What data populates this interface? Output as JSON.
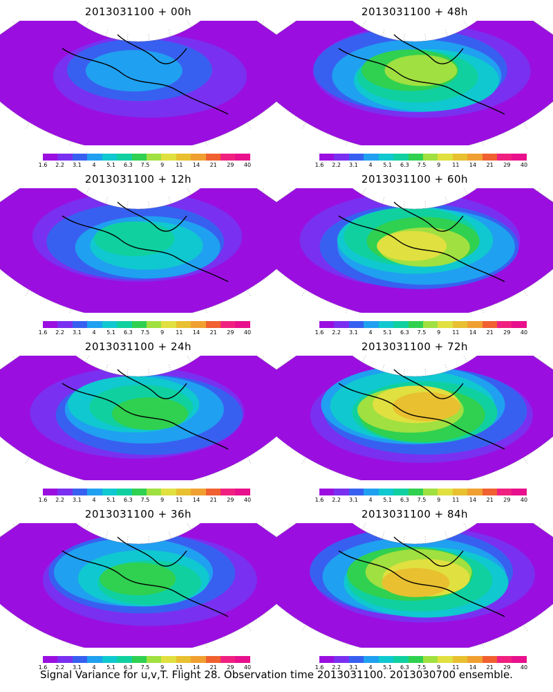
{
  "figure": {
    "caption": "Signal Variance for u,v,T. Flight 28. Observation time 2013031100. 2013030700 ensemble.",
    "colorbar": {
      "ticks": [
        "1.6",
        "2.2",
        "3.1",
        "4",
        "5.1",
        "6.3",
        "7.5",
        "9",
        "11",
        "14",
        "21",
        "29",
        "40"
      ],
      "colors": [
        "#9a0fe0",
        "#7a30f0",
        "#3860f0",
        "#20a0f0",
        "#10c8d0",
        "#10d0a0",
        "#30d050",
        "#a0e040",
        "#e0e040",
        "#e8c030",
        "#f0a030",
        "#f06030",
        "#f02080",
        "#e8108c"
      ]
    },
    "panels": [
      {
        "title": "2013031100 + 00h",
        "intensity": 0.15
      },
      {
        "title": "2013031100 + 48h",
        "intensity": 0.55
      },
      {
        "title": "2013031100 + 12h",
        "intensity": 0.3
      },
      {
        "title": "2013031100 + 60h",
        "intensity": 0.65
      },
      {
        "title": "2013031100 + 24h",
        "intensity": 0.4
      },
      {
        "title": "2013031100 + 72h",
        "intensity": 0.75
      },
      {
        "title": "2013031100 + 36h",
        "intensity": 0.48
      },
      {
        "title": "2013031100 + 84h",
        "intensity": 0.82
      }
    ]
  }
}
